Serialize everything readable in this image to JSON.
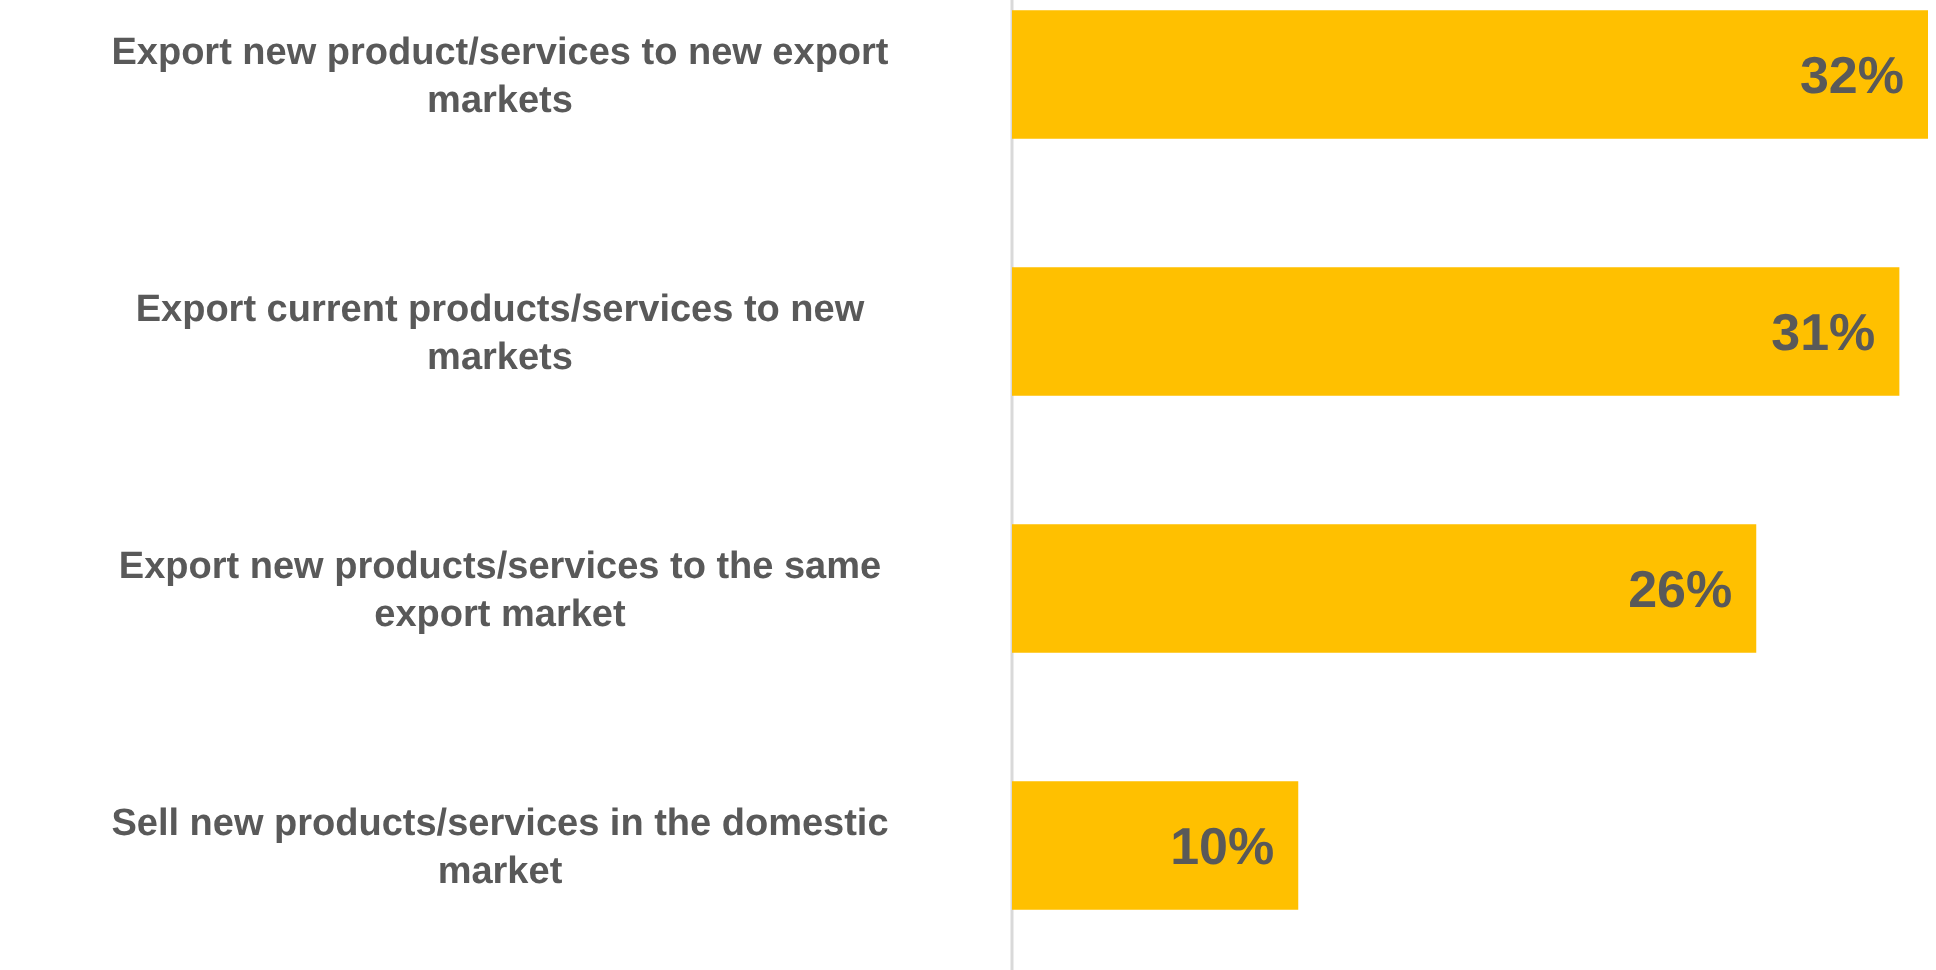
{
  "chart_data": {
    "type": "bar",
    "orientation": "horizontal",
    "categories": [
      "Export new product/services to new export markets",
      "Export current products/services to new markets",
      "Export new products/services to the same export market",
      "Sell new products/services in the domestic market"
    ],
    "series": [
      {
        "color": "#ffc000",
        "values": [
          32,
          31,
          26,
          10
        ],
        "value_labels": [
          "32%",
          "31%",
          "26%",
          "10%"
        ]
      }
    ]
  }
}
